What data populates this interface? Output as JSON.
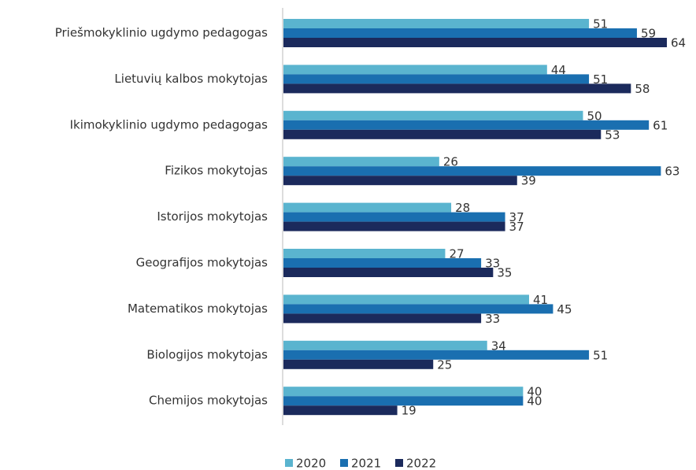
{
  "chart_data": {
    "type": "barh",
    "categories": [
      "Priešmokyklinio ugdymo pedagogas",
      "Lietuvių kalbos mokytojas",
      "Ikimokyklinio ugdymo pedagogas",
      "Fizikos mokytojas",
      "Istorijos mokytojas",
      "Geografijos mokytojas",
      "Matematikos mokytojas",
      "Biologijos mokytojas",
      "Chemijos mokytojas"
    ],
    "series": [
      {
        "name": "2020",
        "color": "#5ab4cf",
        "values": [
          51,
          44,
          50,
          26,
          28,
          27,
          41,
          34,
          40
        ]
      },
      {
        "name": "2021",
        "color": "#1a6fb0",
        "values": [
          59,
          51,
          61,
          63,
          37,
          33,
          45,
          51,
          40
        ]
      },
      {
        "name": "2022",
        "color": "#1b2a5c",
        "values": [
          64,
          58,
          53,
          39,
          37,
          35,
          33,
          25,
          19
        ]
      }
    ],
    "legend": "bottom"
  }
}
